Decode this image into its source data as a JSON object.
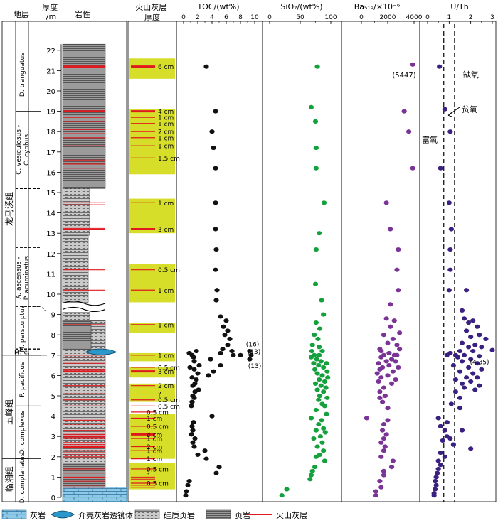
{
  "headers": {
    "layer": "地层",
    "thickness": "厚度\n/m",
    "lith": "岩性",
    "ash": "火山灰层\n厚度",
    "toc": "TOC/(wt%)",
    "sio2": "SiO₂/(wt%)",
    "ba": "Ba₅₁ₐ/×10⁻⁶",
    "uth": "U/Th"
  },
  "formations": [
    "龙马溪组",
    "五峰组",
    "临湘组"
  ],
  "zones": [
    "D. tranguatus",
    "C. vesiculosus - C. cyphus",
    "A. ascensus - P. acuminatus",
    "M. persculptus",
    "M. e.",
    "P. pacificus",
    "D. complexus",
    "D. complanatus"
  ],
  "depth_ticks": [
    "0",
    "1",
    "2",
    "3",
    "4",
    "5",
    "6",
    "7",
    "8",
    "9",
    "10",
    "11",
    "12",
    "13",
    "14",
    "15",
    "16",
    "17",
    "18",
    "19",
    "20",
    "21",
    "22"
  ],
  "ash_labels": [
    "6 cm",
    "4 cm",
    "1 cm",
    "1 cm",
    "2 cm",
    "1 cm",
    "1 cm",
    "1.5 cm",
    "1 cm",
    "3 cm",
    "0.5 cm",
    "1 cm",
    "1 cm",
    "1 cm",
    "0.5 cm",
    "3 cm",
    "2 cm",
    "?",
    "0.5 cm",
    "0.5 cm",
    "0.5 cm",
    "1 cm",
    "0.5 cm",
    "4 cm",
    "1 cm",
    "2 cm",
    "1 cm",
    "1 cm",
    "0.5 cm",
    "?",
    "0.5 cm"
  ],
  "annotations": {
    "toc_outliers": [
      "(16)",
      "(13)",
      "(13)"
    ],
    "ba_outlier": "(5447)",
    "uth_outlier": "(4.35)",
    "anoxic": "缺氧",
    "dysoxic": "贫氧",
    "oxic": "富氧"
  },
  "legend": {
    "limestone": "灰岩",
    "lens": "介壳灰岩透镜体",
    "siliceous_shale": "硅质页岩",
    "shale": "页岩",
    "ash": "火山灰层"
  },
  "colors": {
    "toc": "#111111",
    "sio2": "#14a03c",
    "ba": "#7a3496",
    "uth": "#3a2080",
    "ash_band": "#d6de2a",
    "ash_line": "#e0191e"
  },
  "chart_data": [
    {
      "type": "scatter",
      "name": "TOC",
      "xlabel": "TOC/(wt%)",
      "xlim": [
        0,
        10
      ],
      "xticks": [
        "0",
        "2",
        "4",
        "6",
        "8",
        "10"
      ],
      "ylabel": "厚度/m",
      "ylim": [
        0,
        22.5
      ],
      "points": [
        [
          3.2,
          21.2
        ],
        [
          4.5,
          19.0
        ],
        [
          4.0,
          18.0
        ],
        [
          4.2,
          17.2
        ],
        [
          4.5,
          16.2
        ],
        [
          4.5,
          14.5
        ],
        [
          4.5,
          13.2
        ],
        [
          4.6,
          12.2
        ],
        [
          4.5,
          11.2
        ],
        [
          4.7,
          10.2
        ],
        [
          4.6,
          9.7
        ],
        [
          5.2,
          8.9
        ],
        [
          6.0,
          8.7
        ],
        [
          5.6,
          8.4
        ],
        [
          6.2,
          8.2
        ],
        [
          5.8,
          8.0
        ],
        [
          6.5,
          7.8
        ],
        [
          6.2,
          7.5
        ],
        [
          5.5,
          7.3
        ],
        [
          6.8,
          7.2
        ],
        [
          5.2,
          7.1
        ],
        [
          7.0,
          7.0
        ],
        [
          8.0,
          7.0
        ],
        [
          9.3,
          7.2
        ],
        [
          9.5,
          7.0
        ],
        [
          9.3,
          6.8
        ],
        [
          0.8,
          7.1
        ],
        [
          1.8,
          7.2
        ],
        [
          1.2,
          7.0
        ],
        [
          1.4,
          6.9
        ],
        [
          3.8,
          6.8
        ],
        [
          1.5,
          6.7
        ],
        [
          2.2,
          6.5
        ],
        [
          5.2,
          6.5
        ],
        [
          0.9,
          6.4
        ],
        [
          1.5,
          6.3
        ],
        [
          4.2,
          6.2
        ],
        [
          2.0,
          6.1
        ],
        [
          3.5,
          6.0
        ],
        [
          1.2,
          5.9
        ],
        [
          1.8,
          5.8
        ],
        [
          1.6,
          5.6
        ],
        [
          1.3,
          5.5
        ],
        [
          2.1,
          5.3
        ],
        [
          1.6,
          5.2
        ],
        [
          1.3,
          5.0
        ],
        [
          1.5,
          4.9
        ],
        [
          1.2,
          4.7
        ],
        [
          1.1,
          4.5
        ],
        [
          4.0,
          4.0
        ],
        [
          1.4,
          3.7
        ],
        [
          1.2,
          3.5
        ],
        [
          1.3,
          3.3
        ],
        [
          1.1,
          3.1
        ],
        [
          1.6,
          2.9
        ],
        [
          1.3,
          2.7
        ],
        [
          1.5,
          2.5
        ],
        [
          3.0,
          2.3
        ],
        [
          2.0,
          2.1
        ],
        [
          3.2,
          1.9
        ],
        [
          5.0,
          1.5
        ],
        [
          4.6,
          1.2
        ],
        [
          0.8,
          0.8
        ],
        [
          0.6,
          0.6
        ],
        [
          0.4,
          0.3
        ],
        [
          0.3,
          0.1
        ]
      ]
    },
    {
      "type": "scatter",
      "name": "SiO2",
      "xlabel": "SiO₂/(wt%)",
      "xlim": [
        0,
        100
      ],
      "xticks": [
        "0",
        "50",
        "100"
      ],
      "ylabel": "厚度/m",
      "ylim": [
        0,
        22.5
      ],
      "points": [
        [
          78,
          21.2
        ],
        [
          68,
          19.2
        ],
        [
          75,
          18.5
        ],
        [
          76,
          17.2
        ],
        [
          76,
          16.2
        ],
        [
          89,
          14.5
        ],
        [
          81,
          13.0
        ],
        [
          76,
          12.2
        ],
        [
          75,
          10.5
        ],
        [
          85,
          9.7
        ],
        [
          88,
          9.0
        ],
        [
          76,
          8.6
        ],
        [
          82,
          8.3
        ],
        [
          73,
          8.0
        ],
        [
          79,
          7.8
        ],
        [
          70,
          7.5
        ],
        [
          81,
          7.4
        ],
        [
          69,
          7.2
        ],
        [
          86,
          7.2
        ],
        [
          73,
          7.0
        ],
        [
          81,
          7.0
        ],
        [
          68,
          6.9
        ],
        [
          77,
          6.8
        ],
        [
          84,
          6.7
        ],
        [
          72,
          6.6
        ],
        [
          93,
          6.6
        ],
        [
          80,
          6.5
        ],
        [
          88,
          6.4
        ],
        [
          74,
          6.3
        ],
        [
          94,
          6.2
        ],
        [
          78,
          6.1
        ],
        [
          86,
          6.0
        ],
        [
          95,
          5.9
        ],
        [
          81,
          5.8
        ],
        [
          90,
          5.7
        ],
        [
          75,
          5.6
        ],
        [
          84,
          5.5
        ],
        [
          92,
          5.4
        ],
        [
          78,
          5.3
        ],
        [
          88,
          5.2
        ],
        [
          82,
          5.0
        ],
        [
          94,
          4.9
        ],
        [
          80,
          4.8
        ],
        [
          86,
          4.6
        ],
        [
          90,
          4.5
        ],
        [
          76,
          4.3
        ],
        [
          93,
          4.1
        ],
        [
          68,
          3.9
        ],
        [
          85,
          3.8
        ],
        [
          80,
          3.6
        ],
        [
          88,
          3.4
        ],
        [
          76,
          3.3
        ],
        [
          91,
          3.2
        ],
        [
          83,
          3.0
        ],
        [
          72,
          2.9
        ],
        [
          86,
          2.7
        ],
        [
          78,
          2.5
        ],
        [
          88,
          2.3
        ],
        [
          82,
          2.1
        ],
        [
          76,
          2.0
        ],
        [
          90,
          1.8
        ],
        [
          74,
          1.5
        ],
        [
          70,
          1.3
        ],
        [
          68,
          1.1
        ],
        [
          66,
          0.9
        ],
        [
          28,
          0.4
        ],
        [
          20,
          0.1
        ]
      ]
    },
    {
      "type": "scatter",
      "name": "Ba_bio",
      "xlabel": "Ba_bio/×10⁻⁶",
      "xlim": [
        0,
        4000
      ],
      "xticks": [
        "0",
        "2000",
        "4000"
      ],
      "ylabel": "厚度/m",
      "ylim": [
        0,
        22.5
      ],
      "outlier_point": [
        3900,
        21.3
      ],
      "points": [
        [
          3250,
          19.0
        ],
        [
          3600,
          18.0
        ],
        [
          3900,
          16.2
        ],
        [
          1900,
          14.5
        ],
        [
          2200,
          13.2
        ],
        [
          2800,
          12.2
        ],
        [
          2700,
          11.2
        ],
        [
          2800,
          10.2
        ],
        [
          2200,
          9.5
        ],
        [
          1900,
          8.8
        ],
        [
          2500,
          8.7
        ],
        [
          2200,
          8.4
        ],
        [
          2900,
          8.1
        ],
        [
          1700,
          8.0
        ],
        [
          2400,
          7.8
        ],
        [
          2000,
          7.6
        ],
        [
          2700,
          7.5
        ],
        [
          1400,
          7.3
        ],
        [
          2900,
          7.3
        ],
        [
          1500,
          7.2
        ],
        [
          2100,
          7.1
        ],
        [
          2500,
          7.0
        ],
        [
          1700,
          7.0
        ],
        [
          2700,
          7.0
        ],
        [
          1500,
          6.9
        ],
        [
          2300,
          6.8
        ],
        [
          1900,
          6.7
        ],
        [
          2600,
          6.7
        ],
        [
          1300,
          6.6
        ],
        [
          2100,
          6.5
        ],
        [
          1600,
          6.4
        ],
        [
          2800,
          6.4
        ],
        [
          1400,
          6.3
        ],
        [
          2400,
          6.2
        ],
        [
          1200,
          6.1
        ],
        [
          2000,
          6.0
        ],
        [
          1500,
          5.9
        ],
        [
          2600,
          5.8
        ],
        [
          1300,
          5.7
        ],
        [
          2300,
          5.6
        ],
        [
          1700,
          5.4
        ],
        [
          1400,
          5.2
        ],
        [
          1800,
          5.0
        ],
        [
          1400,
          4.9
        ],
        [
          1600,
          4.7
        ],
        [
          2000,
          4.4
        ],
        [
          400,
          3.9
        ],
        [
          2000,
          3.8
        ],
        [
          1700,
          3.6
        ],
        [
          1600,
          3.3
        ],
        [
          1900,
          3.1
        ],
        [
          1700,
          2.9
        ],
        [
          1500,
          2.7
        ],
        [
          1800,
          2.5
        ],
        [
          1700,
          2.3
        ],
        [
          1500,
          2.0
        ],
        [
          2400,
          1.8
        ],
        [
          2300,
          1.5
        ],
        [
          1700,
          1.3
        ],
        [
          1700,
          1.1
        ],
        [
          1400,
          0.8
        ],
        [
          1500,
          0.5
        ],
        [
          1100,
          0.3
        ],
        [
          1100,
          0.1
        ]
      ]
    },
    {
      "type": "scatter",
      "name": "U/Th",
      "xlabel": "U/Th",
      "xlim": [
        0,
        3
      ],
      "xticks": [
        "0",
        "1",
        "2",
        "3"
      ],
      "ylabel": "厚度/m",
      "ylim": [
        0,
        22.5
      ],
      "reference_lines": [
        0.75,
        1.25
      ],
      "outlier_point": [
        3.0,
        7.25
      ],
      "points": [
        [
          0.55,
          21.2
        ],
        [
          0.8,
          19.1
        ],
        [
          1.05,
          18.0
        ],
        [
          0.6,
          16.2
        ],
        [
          1.0,
          14.5
        ],
        [
          1.1,
          13.2
        ],
        [
          1.05,
          12.2
        ],
        [
          1.05,
          11.2
        ],
        [
          1.0,
          10.2
        ],
        [
          1.8,
          10.2
        ],
        [
          1.6,
          9.2
        ],
        [
          1.7,
          8.8
        ],
        [
          2.1,
          8.7
        ],
        [
          1.9,
          8.6
        ],
        [
          2.3,
          8.4
        ],
        [
          1.8,
          8.2
        ],
        [
          2.4,
          8.0
        ],
        [
          2.0,
          7.9
        ],
        [
          2.7,
          7.8
        ],
        [
          1.6,
          7.6
        ],
        [
          2.2,
          7.5
        ],
        [
          1.9,
          7.4
        ],
        [
          2.5,
          7.4
        ],
        [
          1.5,
          7.2
        ],
        [
          2.1,
          7.2
        ],
        [
          1.05,
          7.1
        ],
        [
          0.9,
          7.0
        ],
        [
          1.3,
          7.0
        ],
        [
          1.7,
          7.0
        ],
        [
          2.4,
          6.95
        ],
        [
          1.4,
          6.9
        ],
        [
          2.0,
          6.8
        ],
        [
          1.6,
          6.7
        ],
        [
          2.3,
          6.6
        ],
        [
          1.2,
          6.5
        ],
        [
          1.9,
          6.4
        ],
        [
          2.5,
          6.3
        ],
        [
          1.5,
          6.2
        ],
        [
          2.1,
          6.1
        ],
        [
          1.8,
          5.9
        ],
        [
          2.3,
          5.9
        ],
        [
          1.3,
          5.8
        ],
        [
          2.0,
          5.7
        ],
        [
          1.6,
          5.6
        ],
        [
          2.4,
          5.5
        ],
        [
          1.7,
          5.4
        ],
        [
          2.2,
          5.3
        ],
        [
          1.3,
          5.2
        ],
        [
          1.5,
          4.9
        ],
        [
          1.1,
          4.6
        ],
        [
          1.5,
          4.4
        ],
        [
          0.5,
          3.9
        ],
        [
          0.9,
          3.7
        ],
        [
          0.6,
          3.5
        ],
        [
          0.8,
          3.3
        ],
        [
          1.6,
          3.3
        ],
        [
          0.9,
          3.0
        ],
        [
          1.05,
          2.9
        ],
        [
          0.7,
          2.8
        ],
        [
          1.2,
          2.6
        ],
        [
          2.0,
          2.4
        ],
        [
          0.6,
          2.2
        ],
        [
          0.8,
          2.0
        ],
        [
          0.5,
          1.8
        ],
        [
          0.6,
          1.6
        ],
        [
          0.5,
          1.4
        ],
        [
          0.45,
          1.2
        ],
        [
          0.4,
          1.0
        ],
        [
          0.35,
          0.8
        ],
        [
          0.4,
          0.6
        ],
        [
          0.35,
          0.4
        ],
        [
          0.3,
          0.2
        ],
        [
          0.3,
          0.1
        ]
      ]
    }
  ]
}
